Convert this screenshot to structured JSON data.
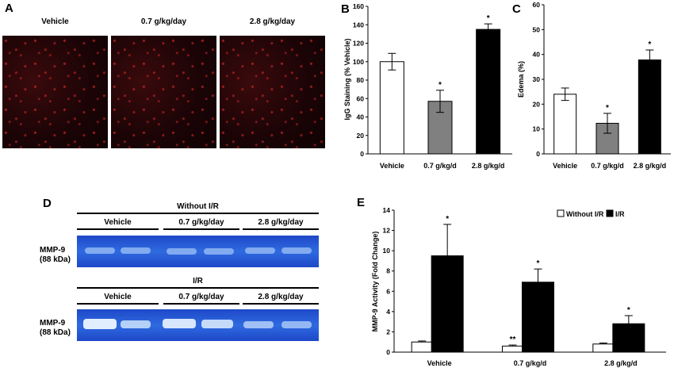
{
  "panel_a": {
    "letter": "A",
    "labels": [
      "Vehicle",
      "0.7 g/kg/day",
      "2.8 g/kg/day"
    ]
  },
  "panel_d": {
    "letter": "D",
    "top_header": "Without I/R",
    "bottom_header": "I/R",
    "dose_labels": [
      "Vehicle",
      "0.7 g/kg/day",
      "2.8 g/kg/day"
    ],
    "row_label_line1": "MMP-9",
    "row_label_line2": "(88 kDa)"
  },
  "colors": {
    "vehicle_bar": "#ffffff",
    "mid_bar": "#808080",
    "high_bar": "#000000",
    "gel_blue": "#2f6ae0",
    "micro_red": "#c82828"
  },
  "chart_data": [
    {
      "panel": "B",
      "type": "bar",
      "categories": [
        "Vehicle",
        "0.7 g/kg/d",
        "2.8 g/kg/d"
      ],
      "values": [
        100,
        57,
        135
      ],
      "errors": [
        9,
        12,
        6
      ],
      "significance": [
        "",
        "*",
        "*"
      ],
      "ylabel": "IgG Staining (% Vehicle)",
      "ylim": [
        0,
        160
      ],
      "yticks": [
        0,
        20,
        40,
        60,
        80,
        100,
        120,
        140,
        160
      ]
    },
    {
      "panel": "C",
      "type": "bar",
      "categories": [
        "Vehicle",
        "0.7 g/kg/d",
        "2.8 g/kg/d"
      ],
      "values": [
        24,
        12.3,
        37.8
      ],
      "errors": [
        2.5,
        4,
        4
      ],
      "significance": [
        "",
        "*",
        "*"
      ],
      "ylabel": "Edema (%)",
      "ylim": [
        0,
        60
      ],
      "yticks": [
        0,
        10,
        20,
        30,
        40,
        50,
        60
      ]
    },
    {
      "panel": "E",
      "type": "bar",
      "categories": [
        "Vehicle",
        "0.7 g/kg/d",
        "2.8 g/kg/d"
      ],
      "series": [
        {
          "name": "Without I/R",
          "values": [
            1.0,
            0.6,
            0.8
          ],
          "errors": [
            0.1,
            0.1,
            0.1
          ],
          "significance": [
            "",
            "**",
            ""
          ]
        },
        {
          "name": "I/R",
          "values": [
            9.5,
            6.9,
            2.8
          ],
          "errors": [
            3.1,
            1.3,
            0.8
          ],
          "significance": [
            "*",
            "*",
            "*"
          ]
        }
      ],
      "ylabel": "MMP-9 Activity (Fold Change)",
      "ylim": [
        0,
        14
      ],
      "yticks": [
        0,
        2,
        4,
        6,
        8,
        10,
        12,
        14
      ],
      "legend": "top-right"
    }
  ]
}
